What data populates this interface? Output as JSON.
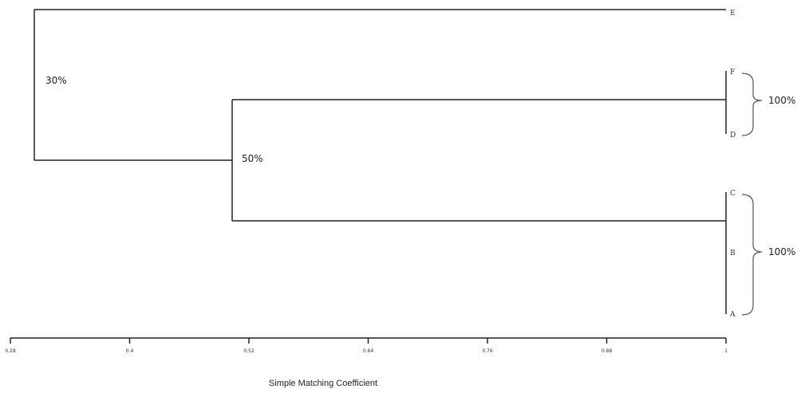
{
  "dendrogram": {
    "leaves": [
      "E",
      "F",
      "D",
      "C",
      "B",
      "A"
    ],
    "nodes": [
      {
        "id": "root",
        "label": "30%"
      },
      {
        "id": "node50",
        "label": "50%"
      }
    ],
    "similarity_annotations": [
      {
        "group": [
          "F",
          "D"
        ],
        "label": "100%"
      },
      {
        "group": [
          "C",
          "B",
          "A"
        ],
        "label": "100%"
      }
    ]
  },
  "axis": {
    "ticks": [
      "0.28",
      "0.4",
      "0.52",
      "0.64",
      "0.76",
      "0.88",
      "1"
    ],
    "title": "Simple Matching Coefficient"
  }
}
